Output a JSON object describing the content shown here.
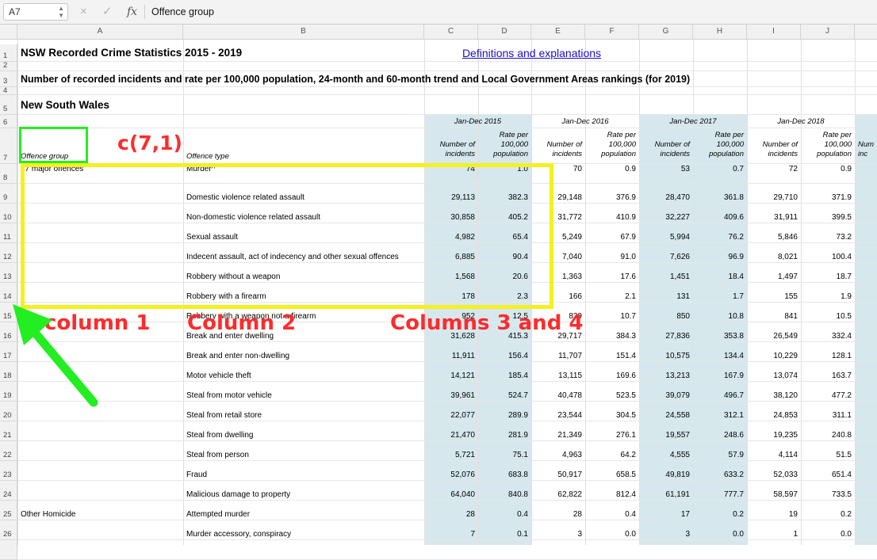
{
  "formula_bar": {
    "cell_ref": "A7",
    "cancel_icon": "×",
    "confirm_icon": "✓",
    "fx_label": "fx",
    "value": "Offence group"
  },
  "columns": [
    "A",
    "B",
    "C",
    "D",
    "E",
    "F",
    "G",
    "H",
    "I",
    "J"
  ],
  "rows_visible": [
    "1",
    "2",
    "3",
    "4",
    "5",
    "6",
    "7",
    "8",
    "9",
    "10",
    "11",
    "12",
    "13",
    "14",
    "15",
    "16",
    "17",
    "18",
    "19",
    "20",
    "21",
    "22",
    "23",
    "24",
    "25",
    "26"
  ],
  "sheet": {
    "title": "NSW Recorded Crime Statistics 2015 - 2019",
    "link": "Definitions and explanations",
    "subtitle": "Number of recorded incidents and rate per 100,000 population, 24-month and 60-month trend and Local Government Areas rankings (for 2019)",
    "region": "New South Wales",
    "periods": [
      "Jan-Dec 2015",
      "Jan-Dec 2016",
      "Jan-Dec 2017",
      "Jan-Dec 2018"
    ],
    "col_header_incidents": [
      "Number of",
      "incidents"
    ],
    "col_header_rate": [
      "Rate per",
      "100,000",
      "population"
    ],
    "col_header_partial": [
      "Num",
      "inc"
    ],
    "offence_group_label": "Offence group",
    "offence_type_label": "Offence type",
    "data_rows": [
      {
        "row": "8",
        "group": "17 major offences",
        "type": "Murder^",
        "values": [
          "74",
          "1.0",
          "70",
          "0.9",
          "53",
          "0.7",
          "72",
          "0.9"
        ]
      },
      {
        "row": "9",
        "group": "",
        "type": "Domestic violence related assault",
        "values": [
          "29,113",
          "382.3",
          "29,148",
          "376.9",
          "28,470",
          "361.8",
          "29,710",
          "371.9"
        ]
      },
      {
        "row": "10",
        "group": "",
        "type": "Non-domestic violence related assault",
        "values": [
          "30,858",
          "405.2",
          "31,772",
          "410.9",
          "32,227",
          "409.6",
          "31,911",
          "399.5"
        ]
      },
      {
        "row": "11",
        "group": "",
        "type": "Sexual assault",
        "values": [
          "4,982",
          "65.4",
          "5,249",
          "67.9",
          "5,994",
          "76.2",
          "5,846",
          "73.2"
        ]
      },
      {
        "row": "12",
        "group": "",
        "type": "Indecent assault, act of indecency and other sexual offences",
        "values": [
          "6,885",
          "90.4",
          "7,040",
          "91.0",
          "7,626",
          "96.9",
          "8,021",
          "100.4"
        ]
      },
      {
        "row": "13",
        "group": "",
        "type": "Robbery without a weapon",
        "values": [
          "1,568",
          "20.6",
          "1,363",
          "17.6",
          "1,451",
          "18.4",
          "1,497",
          "18.7"
        ]
      },
      {
        "row": "14",
        "group": "",
        "type": "Robbery with a firearm",
        "values": [
          "178",
          "2.3",
          "166",
          "2.1",
          "131",
          "1.7",
          "155",
          "1.9"
        ]
      },
      {
        "row": "15",
        "group": "",
        "type": "Robbery with a weapon not a firearm",
        "values": [
          "952",
          "12.5",
          "829",
          "10.7",
          "850",
          "10.8",
          "841",
          "10.5"
        ]
      },
      {
        "row": "16",
        "group": "",
        "type": "Break and enter dwelling",
        "values": [
          "31,628",
          "415.3",
          "29,717",
          "384.3",
          "27,836",
          "353.8",
          "26,549",
          "332.4"
        ]
      },
      {
        "row": "17",
        "group": "",
        "type": "Break and enter non-dwelling",
        "values": [
          "11,911",
          "156.4",
          "11,707",
          "151.4",
          "10,575",
          "134.4",
          "10,229",
          "128.1"
        ]
      },
      {
        "row": "18",
        "group": "",
        "type": "Motor vehicle theft",
        "values": [
          "14,121",
          "185.4",
          "13,115",
          "169.6",
          "13,213",
          "167.9",
          "13,074",
          "163.7"
        ]
      },
      {
        "row": "19",
        "group": "",
        "type": "Steal from motor vehicle",
        "values": [
          "39,961",
          "524.7",
          "40,478",
          "523.5",
          "39,079",
          "496.7",
          "38,120",
          "477.2"
        ]
      },
      {
        "row": "20",
        "group": "",
        "type": "Steal from retail store",
        "values": [
          "22,077",
          "289.9",
          "23,544",
          "304.5",
          "24,558",
          "312.1",
          "24,853",
          "311.1"
        ]
      },
      {
        "row": "21",
        "group": "",
        "type": "Steal from dwelling",
        "values": [
          "21,470",
          "281.9",
          "21,349",
          "276.1",
          "19,557",
          "248.6",
          "19,235",
          "240.8"
        ]
      },
      {
        "row": "22",
        "group": "",
        "type": "Steal from person",
        "values": [
          "5,721",
          "75.1",
          "4,963",
          "64.2",
          "4,555",
          "57.9",
          "4,114",
          "51.5"
        ]
      },
      {
        "row": "23",
        "group": "",
        "type": "Fraud",
        "values": [
          "52,076",
          "683.8",
          "50,917",
          "658.5",
          "49,819",
          "633.2",
          "52,033",
          "651.4"
        ]
      },
      {
        "row": "24",
        "group": "",
        "type": "Malicious damage to property",
        "values": [
          "64,040",
          "840.8",
          "62,822",
          "812.4",
          "61,191",
          "777.7",
          "58,597",
          "733.5"
        ]
      },
      {
        "row": "25",
        "group": "Other Homicide",
        "type": "Attempted murder",
        "values": [
          "28",
          "0.4",
          "28",
          "0.4",
          "17",
          "0.2",
          "19",
          "0.2"
        ]
      },
      {
        "row": "26",
        "group": "",
        "type": "Murder accessory, conspiracy",
        "values": [
          "7",
          "0.1",
          "3",
          "0.0",
          "3",
          "0.0",
          "1",
          "0.0"
        ]
      }
    ]
  },
  "annotations": {
    "cell_label": "c(7,1)",
    "column1": "column 1",
    "column2": "Column 2",
    "columns34": "Columns 3 and 4",
    "colors": {
      "red": "#ff2b2b",
      "yellow": "#f4f022",
      "green": "#22ee22"
    }
  }
}
